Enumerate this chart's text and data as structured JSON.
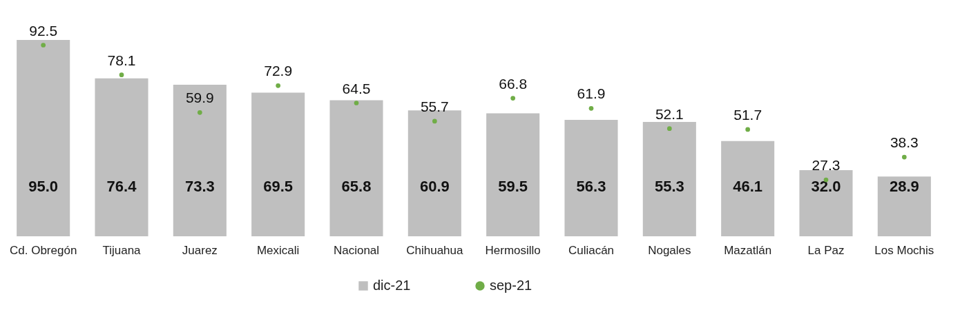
{
  "chart_data": {
    "type": "bar",
    "categories": [
      "Cd. Obregón",
      "Tijuana",
      "Juarez",
      "Mexicali",
      "Nacional",
      "Chihuahua",
      "Hermosillo",
      "Culiacán",
      "Nogales",
      "Mazatlán",
      "La Paz",
      "Los Mochis"
    ],
    "series": [
      {
        "name": "dic-21",
        "color": "#bfbfbf",
        "values": [
          95.0,
          76.4,
          73.3,
          69.5,
          65.8,
          60.9,
          59.5,
          56.3,
          55.3,
          46.1,
          32.0,
          28.9
        ],
        "value_labels": [
          "95.0",
          "76.4",
          "73.3",
          "69.5",
          "65.8",
          "60.9",
          "59.5",
          "56.3",
          "55.3",
          "46.1",
          "32.0",
          "28.9"
        ]
      },
      {
        "name": "sep-21",
        "type": "scatter",
        "color": "#70ad47",
        "values": [
          92.5,
          78.1,
          59.9,
          72.9,
          64.5,
          55.7,
          66.8,
          61.9,
          52.1,
          51.7,
          27.3,
          38.3
        ],
        "value_labels": [
          "92.5",
          "78.1",
          "59.9",
          "72.9",
          "64.5",
          "55.7",
          "66.8",
          "61.9",
          "52.1",
          "51.7",
          "27.3",
          "38.3"
        ]
      }
    ],
    "legend": "bottom",
    "tick_labels": "x",
    "marker": "circle",
    "grid": false
  }
}
